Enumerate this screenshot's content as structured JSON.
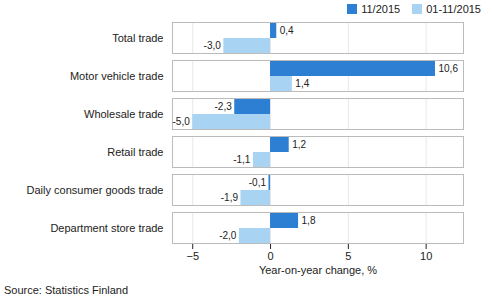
{
  "chart_data": {
    "type": "bar",
    "orientation": "horizontal",
    "categories": [
      "Total trade",
      "Motor vehicle trade",
      "Wholesale trade",
      "Retail trade",
      "Daily consumer goods trade",
      "Department store trade"
    ],
    "series": [
      {
        "name": "11/2015",
        "color": "#2c7fd2",
        "values": [
          0.4,
          10.6,
          -2.3,
          1.2,
          -0.1,
          1.8
        ],
        "value_labels": [
          "0,4",
          "10,6",
          "-2,3",
          "1,2",
          "-0,1",
          "1,8"
        ]
      },
      {
        "name": "01-11/2015",
        "color": "#a9d3f2",
        "values": [
          -3.0,
          1.4,
          -5.0,
          -1.1,
          -1.9,
          -2.0
        ],
        "value_labels": [
          "-3,0",
          "1,4",
          "-5,0",
          "-1,1",
          "-1,9",
          "-2,0"
        ]
      }
    ],
    "xlim": [
      -6.3,
      12.4
    ],
    "xticks": [
      -5,
      0,
      5,
      10
    ],
    "x_label": "Year-on-year change, %",
    "grid": true,
    "data_labels": true,
    "legend": "top-right",
    "caption": "Source: Statistics Finland"
  }
}
